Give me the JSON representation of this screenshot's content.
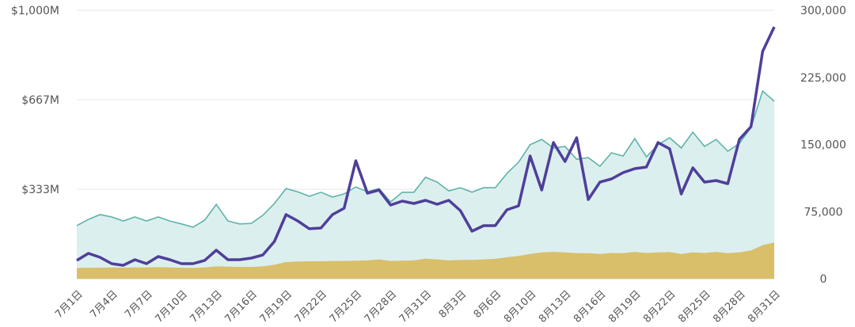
{
  "chart_data": {
    "type": "area",
    "title": "",
    "x_tick_labels": [
      "7月1日",
      "7月4日",
      "7月7日",
      "7月10日",
      "7月13日",
      "7月16日",
      "7月19日",
      "7月22日",
      "7月25日",
      "7月28日",
      "7月31日",
      "8月3日",
      "8月6日",
      "8月10日",
      "8月13日",
      "8月16日",
      "8月19日",
      "8月22日",
      "8月25日",
      "8月28日",
      "8月31日"
    ],
    "y_left": {
      "range": [
        0,
        1000
      ],
      "unit": "M USD",
      "tick_labels": [
        "$333M",
        "$667M",
        "$1,000M"
      ],
      "tick_values": [
        333,
        667,
        1000
      ]
    },
    "y_right": {
      "range": [
        0,
        300000
      ],
      "tick_labels": [
        "0",
        "75,000",
        "150,000",
        "225,000",
        "300,000"
      ],
      "tick_values": [
        0,
        75000,
        150000,
        225000,
        300000
      ]
    },
    "grid": true,
    "colors": {
      "teal_line": "#5fb3aa",
      "teal_fill": "#dcefef",
      "gold_fill": "#d9bf6a",
      "purple_line": "#4f3f9a"
    },
    "series": [
      {
        "axis": "left",
        "style": "area",
        "color": "teal",
        "values": [
          198,
          221,
          239,
          230,
          215,
          230,
          215,
          230,
          215,
          204,
          192,
          218,
          277,
          215,
          204,
          206,
          236,
          280,
          336,
          324,
          307,
          322,
          304,
          316,
          342,
          324,
          336,
          286,
          322,
          322,
          378,
          360,
          327,
          339,
          322,
          339,
          339,
          392,
          434,
          499,
          519,
          487,
          493,
          445,
          451,
          419,
          469,
          457,
          522,
          454,
          499,
          525,
          487,
          546,
          493,
          519,
          475,
          504,
          563,
          699,
          661
        ]
      },
      {
        "axis": "left",
        "style": "area",
        "color": "gold",
        "values": [
          40,
          41,
          41,
          42,
          41,
          42,
          42,
          43,
          42,
          41,
          40,
          42,
          46,
          45,
          44,
          44,
          46,
          52,
          62,
          64,
          65,
          65,
          66,
          66,
          67,
          68,
          72,
          66,
          67,
          68,
          75,
          72,
          68,
          70,
          70,
          72,
          74,
          80,
          85,
          92,
          98,
          100,
          98,
          95,
          95,
          92,
          96,
          95,
          100,
          96,
          98,
          99,
          92,
          98,
          96,
          100,
          95,
          98,
          105,
          125,
          135
        ]
      },
      {
        "axis": "right",
        "style": "line",
        "color": "purple",
        "values": [
          20400,
          28300,
          23900,
          16800,
          15000,
          21200,
          16800,
          24800,
          21200,
          16800,
          16800,
          20400,
          31900,
          21200,
          21200,
          23000,
          26500,
          41600,
          71700,
          64600,
          55800,
          56600,
          71700,
          78800,
          131900,
          95600,
          99100,
          82300,
          86700,
          84100,
          87600,
          83200,
          87600,
          76100,
          53100,
          59300,
          59300,
          77000,
          81400,
          137200,
          99100,
          152200,
          131000,
          157500,
          88500,
          108000,
          111500,
          118600,
          123000,
          124800,
          152200,
          145100,
          94700,
          123900,
          108000,
          109700,
          106200,
          155800,
          169900,
          254000,
          281400
        ]
      }
    ]
  }
}
